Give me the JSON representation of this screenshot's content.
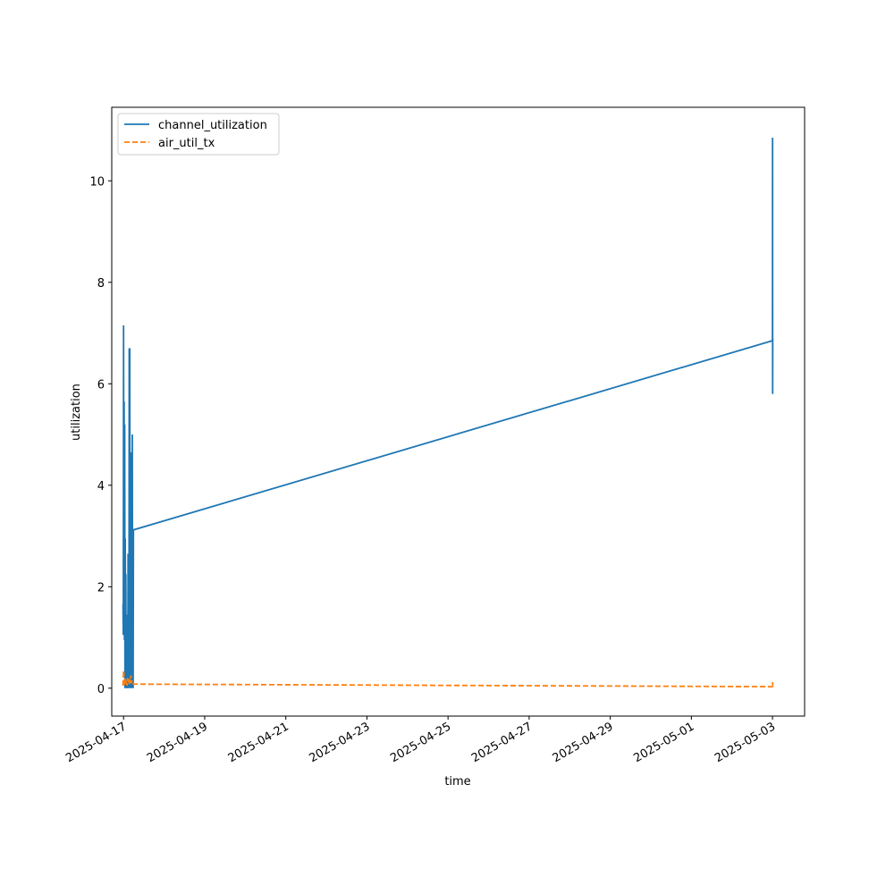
{
  "chart_data": {
    "type": "line",
    "title": "",
    "xlabel": "time",
    "ylabel": "utilization",
    "x_type": "date",
    "xlim": [
      "2025-04-16T17:00",
      "2025-05-03T19:00"
    ],
    "ylim": [
      -0.55,
      11.45
    ],
    "x_ticks": [
      "2025-04-17",
      "2025-04-19",
      "2025-04-21",
      "2025-04-23",
      "2025-04-25",
      "2025-04-27",
      "2025-04-29",
      "2025-05-01",
      "2025-05-03"
    ],
    "y_ticks": [
      0,
      2,
      4,
      6,
      8,
      10
    ],
    "grid": false,
    "legend_position": "top-left",
    "series": [
      {
        "name": "channel_utilization",
        "color": "#1f77b4",
        "style": "solid",
        "points": [
          [
            "2025-04-16T23:40",
            1.65
          ],
          [
            "2025-04-16T23:50",
            1.05
          ],
          [
            "2025-04-17T00:00",
            7.15
          ],
          [
            "2025-04-17T00:10",
            1.1
          ],
          [
            "2025-04-17T00:20",
            5.65
          ],
          [
            "2025-04-17T00:30",
            0.95
          ],
          [
            "2025-04-17T00:40",
            5.2
          ],
          [
            "2025-04-17T00:50",
            0.0
          ],
          [
            "2025-04-17T01:00",
            2.95
          ],
          [
            "2025-04-17T01:10",
            0.0
          ],
          [
            "2025-04-17T01:20",
            2.25
          ],
          [
            "2025-04-17T01:30",
            0.0
          ],
          [
            "2025-04-17T01:40",
            1.45
          ],
          [
            "2025-04-17T01:50",
            0.0
          ],
          [
            "2025-04-17T02:00",
            0.2
          ],
          [
            "2025-04-17T02:10",
            0.0
          ],
          [
            "2025-04-17T02:20",
            1.05
          ],
          [
            "2025-04-17T02:30",
            0.0
          ],
          [
            "2025-04-17T02:40",
            2.65
          ],
          [
            "2025-04-17T02:50",
            0.0
          ],
          [
            "2025-04-17T03:00",
            2.1
          ],
          [
            "2025-04-17T03:10",
            0.0
          ],
          [
            "2025-04-17T03:20",
            6.7
          ],
          [
            "2025-04-17T03:30",
            0.0
          ],
          [
            "2025-04-17T03:40",
            6.7
          ],
          [
            "2025-04-17T03:50",
            0.0
          ],
          [
            "2025-04-17T04:00",
            3.55
          ],
          [
            "2025-04-17T04:10",
            0.0
          ],
          [
            "2025-04-17T04:20",
            2.85
          ],
          [
            "2025-04-17T04:30",
            0.0
          ],
          [
            "2025-04-17T04:40",
            4.65
          ],
          [
            "2025-04-17T04:50",
            0.0
          ],
          [
            "2025-04-17T05:00",
            1.5
          ],
          [
            "2025-04-17T05:10",
            5.0
          ],
          [
            "2025-04-17T05:20",
            0.0
          ],
          [
            "2025-04-17T05:30",
            2.0
          ],
          [
            "2025-04-17T05:40",
            0.0
          ],
          [
            "2025-04-17T05:50",
            3.12
          ],
          [
            "2025-05-03T00:00",
            6.85
          ],
          [
            "2025-05-03T00:03",
            10.85
          ],
          [
            "2025-05-03T00:06",
            5.8
          ],
          [
            "2025-05-03T00:09",
            6.9
          ]
        ]
      },
      {
        "name": "air_util_tx",
        "color": "#ff7f0e",
        "style": "dashed",
        "points": [
          [
            "2025-04-16T23:40",
            0.05
          ],
          [
            "2025-04-17T00:00",
            0.35
          ],
          [
            "2025-04-17T00:20",
            0.2
          ],
          [
            "2025-04-17T00:40",
            0.05
          ],
          [
            "2025-04-17T01:00",
            0.2
          ],
          [
            "2025-04-17T01:20",
            0.1
          ],
          [
            "2025-04-17T01:40",
            0.15
          ],
          [
            "2025-04-17T02:00",
            0.05
          ],
          [
            "2025-04-17T02:20",
            0.2
          ],
          [
            "2025-04-17T02:40",
            0.1
          ],
          [
            "2025-04-17T03:00",
            0.18
          ],
          [
            "2025-04-17T03:20",
            0.08
          ],
          [
            "2025-04-17T03:40",
            0.2
          ],
          [
            "2025-04-17T04:00",
            0.1
          ],
          [
            "2025-04-17T04:20",
            0.25
          ],
          [
            "2025-04-17T04:40",
            0.1
          ],
          [
            "2025-04-17T05:00",
            0.15
          ],
          [
            "2025-04-17T05:50",
            0.08
          ],
          [
            "2025-05-03T00:00",
            0.03
          ],
          [
            "2025-05-03T00:03",
            0.12
          ],
          [
            "2025-05-03T00:09",
            0.05
          ]
        ]
      }
    ]
  }
}
